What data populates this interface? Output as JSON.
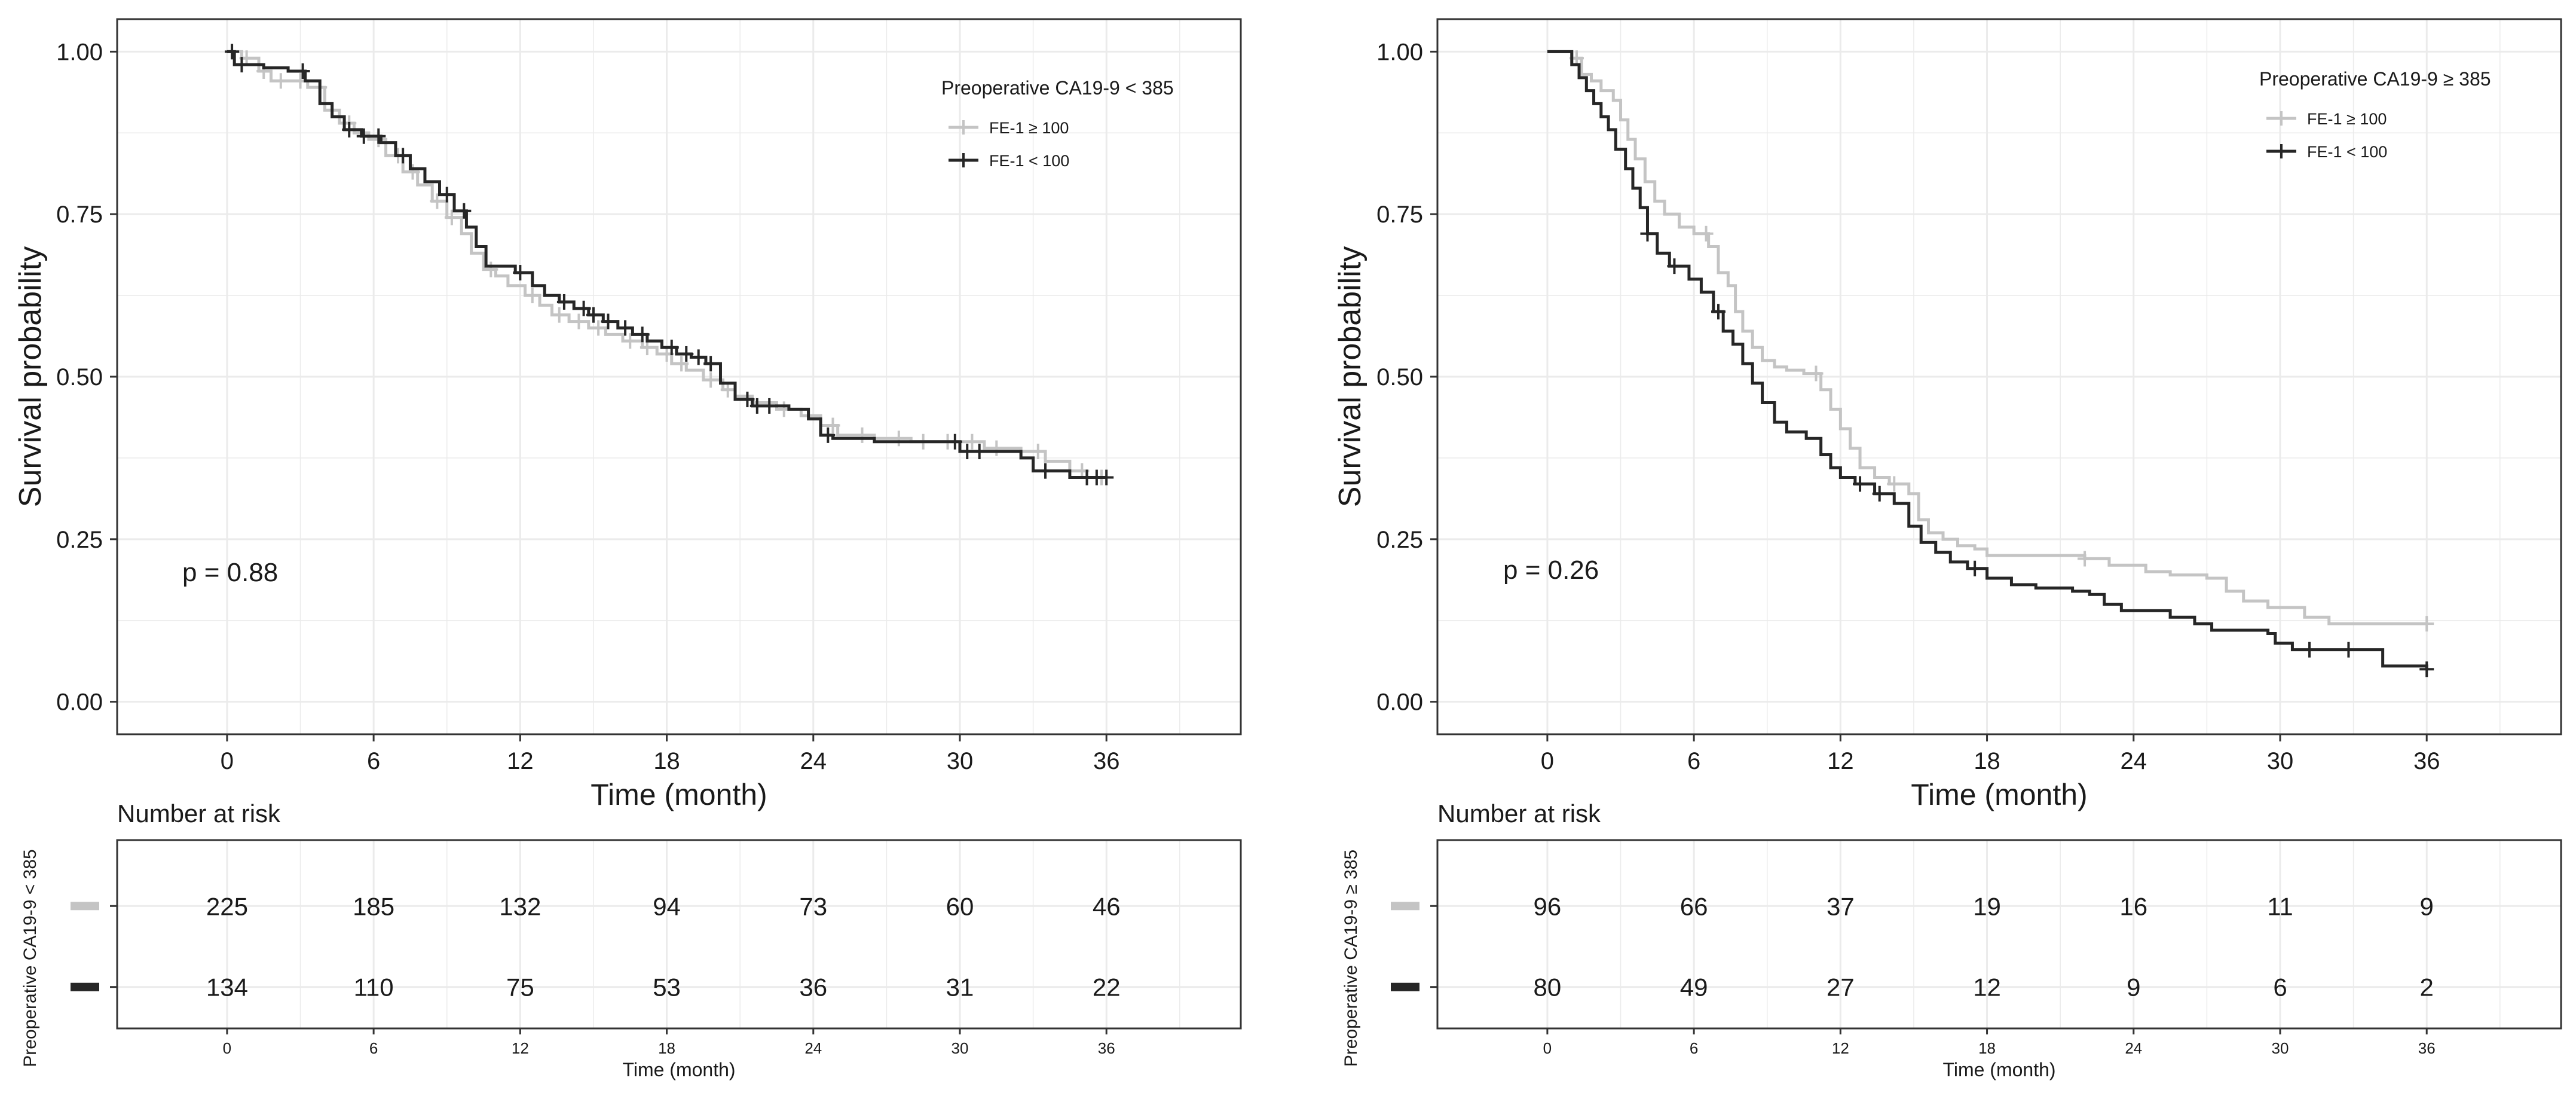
{
  "figure": {
    "colors": {
      "grey": "#c4c4c4",
      "black": "#262626",
      "grid": "#ebebeb",
      "frame": "#333333",
      "text": "#1a1a1a"
    }
  },
  "chart_data": [
    {
      "type": "line",
      "subtype": "kaplan-meier",
      "title": "",
      "xlabel": "Time (month)",
      "ylabel": "Survival probability",
      "xlim": [
        -4.5,
        41.5
      ],
      "ylim": [
        -0.05,
        1.05
      ],
      "xticks": [
        0,
        6,
        12,
        18,
        24,
        30,
        36
      ],
      "yticks": [
        0.0,
        0.25,
        0.5,
        0.75,
        1.0
      ],
      "ytick_labels": [
        "0.00",
        "0.25",
        "0.50",
        "0.75",
        "1.00"
      ],
      "legend_position": "top-right",
      "legend_title": "Preoperative CA19-9 < 385",
      "pvalue_text": "p = 0.88",
      "series": [
        {
          "name": "FE-1 ≥ 100",
          "color_key": "grey",
          "steps": [
            [
              0,
              1.0
            ],
            [
              0.6,
              0.99
            ],
            [
              1.3,
              0.97
            ],
            [
              1.8,
              0.955
            ],
            [
              2.5,
              0.955
            ],
            [
              3.3,
              0.945
            ],
            [
              4,
              0.91
            ],
            [
              4.6,
              0.89
            ],
            [
              5.2,
              0.875
            ],
            [
              5.8,
              0.865
            ],
            [
              6.5,
              0.84
            ],
            [
              7.2,
              0.815
            ],
            [
              7.8,
              0.795
            ],
            [
              8.4,
              0.77
            ],
            [
              9,
              0.745
            ],
            [
              9.6,
              0.72
            ],
            [
              10,
              0.69
            ],
            [
              10.5,
              0.665
            ],
            [
              11,
              0.655
            ],
            [
              11.5,
              0.64
            ],
            [
              12.2,
              0.625
            ],
            [
              12.8,
              0.61
            ],
            [
              13.3,
              0.595
            ],
            [
              14,
              0.585
            ],
            [
              14.8,
              0.575
            ],
            [
              15.5,
              0.565
            ],
            [
              16.2,
              0.555
            ],
            [
              17,
              0.545
            ],
            [
              17.6,
              0.535
            ],
            [
              18.2,
              0.52
            ],
            [
              18.8,
              0.51
            ],
            [
              19.5,
              0.495
            ],
            [
              20.3,
              0.48
            ],
            [
              20.8,
              0.47
            ],
            [
              21.5,
              0.46
            ],
            [
              22.5,
              0.45
            ],
            [
              23.5,
              0.44
            ],
            [
              24.3,
              0.425
            ],
            [
              25,
              0.41
            ],
            [
              26.5,
              0.405
            ],
            [
              28,
              0.4
            ],
            [
              31,
              0.39
            ],
            [
              32.5,
              0.385
            ],
            [
              33.5,
              0.37
            ],
            [
              34.5,
              0.355
            ],
            [
              35.2,
              0.345
            ],
            [
              36,
              0.345
            ]
          ],
          "censor_times": [
            0.8,
            1.5,
            2.2,
            3.0,
            3.8,
            5.0,
            6.2,
            7.0,
            7.6,
            8.6,
            9.2,
            10.8,
            12.5,
            13.6,
            14.4,
            15.2,
            16.5,
            17.2,
            18.0,
            18.6,
            19.8,
            20.5,
            22.8,
            24.8,
            26.0,
            27.5,
            28.5,
            29.5,
            30.5,
            31.5,
            33.2,
            35.0,
            35.8
          ]
        },
        {
          "name": "FE-1 < 100",
          "color_key": "black",
          "steps": [
            [
              0,
              1.0
            ],
            [
              0.3,
              0.98
            ],
            [
              1.5,
              0.975
            ],
            [
              2.5,
              0.97
            ],
            [
              3.2,
              0.955
            ],
            [
              3.8,
              0.92
            ],
            [
              4.3,
              0.9
            ],
            [
              4.8,
              0.88
            ],
            [
              5.5,
              0.87
            ],
            [
              6.3,
              0.86
            ],
            [
              6.9,
              0.84
            ],
            [
              7.5,
              0.82
            ],
            [
              8.1,
              0.8
            ],
            [
              8.7,
              0.78
            ],
            [
              9.3,
              0.755
            ],
            [
              9.8,
              0.73
            ],
            [
              10.2,
              0.7
            ],
            [
              10.6,
              0.67
            ],
            [
              11.8,
              0.66
            ],
            [
              12.5,
              0.64
            ],
            [
              13,
              0.625
            ],
            [
              13.6,
              0.615
            ],
            [
              14.2,
              0.605
            ],
            [
              14.8,
              0.595
            ],
            [
              15.4,
              0.585
            ],
            [
              16,
              0.575
            ],
            [
              16.6,
              0.565
            ],
            [
              17.2,
              0.555
            ],
            [
              17.8,
              0.545
            ],
            [
              18.4,
              0.535
            ],
            [
              19,
              0.53
            ],
            [
              19.6,
              0.52
            ],
            [
              20.2,
              0.49
            ],
            [
              20.8,
              0.465
            ],
            [
              21.5,
              0.455
            ],
            [
              23,
              0.45
            ],
            [
              23.8,
              0.435
            ],
            [
              24.3,
              0.41
            ],
            [
              24.8,
              0.405
            ],
            [
              26.5,
              0.4
            ],
            [
              28,
              0.4
            ],
            [
              30,
              0.385
            ],
            [
              31.8,
              0.385
            ],
            [
              32.5,
              0.375
            ],
            [
              33,
              0.355
            ],
            [
              34,
              0.355
            ],
            [
              34.5,
              0.345
            ],
            [
              36,
              0.345
            ]
          ],
          "censor_times": [
            0.2,
            0.6,
            3.1,
            5.0,
            5.6,
            6.2,
            7.2,
            9.0,
            9.7,
            12.0,
            13.8,
            14.6,
            15.0,
            15.6,
            16.3,
            17.0,
            18.2,
            18.8,
            19.3,
            19.8,
            21.3,
            21.7,
            22.2,
            24.6,
            29.8,
            30.3,
            30.8,
            33.5,
            35.2,
            35.6,
            36.0
          ]
        }
      ],
      "risk_table": {
        "title": "Number at risk",
        "strata_label": "Preoperative CA19-9 < 385",
        "xlabel": "Time (month)",
        "rows": [
          {
            "color_key": "grey",
            "values": [
              "225",
              "185",
              "132",
              "94",
              "73",
              "60",
              "46"
            ]
          },
          {
            "color_key": "black",
            "values": [
              "134",
              "110",
              "75",
              "53",
              "36",
              "31",
              "22"
            ]
          }
        ]
      }
    },
    {
      "type": "line",
      "subtype": "kaplan-meier",
      "title": "",
      "xlabel": "Time (month)",
      "ylabel": "Survival probability",
      "xlim": [
        -4.5,
        41.5
      ],
      "ylim": [
        -0.05,
        1.05
      ],
      "xticks": [
        0,
        6,
        12,
        18,
        24,
        30,
        36
      ],
      "yticks": [
        0.0,
        0.25,
        0.5,
        0.75,
        1.0
      ],
      "ytick_labels": [
        "0.00",
        "0.25",
        "0.50",
        "0.75",
        "1.00"
      ],
      "legend_position": "top-right",
      "legend_title": "Preoperative CA19-9 ≥ 385",
      "pvalue_text": "p = 0.26",
      "series": [
        {
          "name": "FE-1 ≥ 100",
          "color_key": "grey",
          "steps": [
            [
              0,
              1.0
            ],
            [
              1,
              0.99
            ],
            [
              1.4,
              0.965
            ],
            [
              1.8,
              0.955
            ],
            [
              2.2,
              0.94
            ],
            [
              2.7,
              0.925
            ],
            [
              3,
              0.895
            ],
            [
              3.3,
              0.865
            ],
            [
              3.6,
              0.835
            ],
            [
              4,
              0.8
            ],
            [
              4.4,
              0.77
            ],
            [
              4.8,
              0.75
            ],
            [
              5.4,
              0.73
            ],
            [
              6,
              0.72
            ],
            [
              6.6,
              0.7
            ],
            [
              7,
              0.66
            ],
            [
              7.4,
              0.64
            ],
            [
              7.7,
              0.6
            ],
            [
              8,
              0.57
            ],
            [
              8.4,
              0.545
            ],
            [
              8.8,
              0.525
            ],
            [
              9.3,
              0.515
            ],
            [
              9.8,
              0.51
            ],
            [
              10.5,
              0.505
            ],
            [
              11.2,
              0.48
            ],
            [
              11.6,
              0.45
            ],
            [
              12,
              0.42
            ],
            [
              12.4,
              0.39
            ],
            [
              12.8,
              0.36
            ],
            [
              13.4,
              0.345
            ],
            [
              14,
              0.335
            ],
            [
              14.8,
              0.32
            ],
            [
              15.2,
              0.28
            ],
            [
              15.6,
              0.26
            ],
            [
              16.2,
              0.25
            ],
            [
              16.8,
              0.24
            ],
            [
              17.5,
              0.235
            ],
            [
              18,
              0.225
            ],
            [
              20,
              0.225
            ],
            [
              22,
              0.22
            ],
            [
              23,
              0.21
            ],
            [
              24.5,
              0.2
            ],
            [
              25.5,
              0.195
            ],
            [
              27,
              0.19
            ],
            [
              27.8,
              0.17
            ],
            [
              28.5,
              0.155
            ],
            [
              29.5,
              0.145
            ],
            [
              31,
              0.13
            ],
            [
              32,
              0.12
            ],
            [
              36,
              0.12
            ]
          ],
          "censor_times": [
            1.2,
            6.5,
            11.0,
            14.2,
            22.0,
            36.0
          ]
        },
        {
          "name": "FE-1 < 100",
          "color_key": "black",
          "steps": [
            [
              0,
              1.0
            ],
            [
              0.5,
              1.0
            ],
            [
              1,
              0.98
            ],
            [
              1.3,
              0.96
            ],
            [
              1.6,
              0.94
            ],
            [
              1.9,
              0.92
            ],
            [
              2.2,
              0.9
            ],
            [
              2.5,
              0.88
            ],
            [
              2.8,
              0.85
            ],
            [
              3.2,
              0.82
            ],
            [
              3.5,
              0.79
            ],
            [
              3.8,
              0.76
            ],
            [
              4.1,
              0.72
            ],
            [
              4.5,
              0.69
            ],
            [
              5,
              0.67
            ],
            [
              5.8,
              0.65
            ],
            [
              6.3,
              0.63
            ],
            [
              6.8,
              0.6
            ],
            [
              7.2,
              0.57
            ],
            [
              7.6,
              0.55
            ],
            [
              8,
              0.52
            ],
            [
              8.4,
              0.49
            ],
            [
              8.8,
              0.46
            ],
            [
              9.3,
              0.43
            ],
            [
              9.8,
              0.415
            ],
            [
              10.6,
              0.405
            ],
            [
              11.2,
              0.38
            ],
            [
              11.6,
              0.36
            ],
            [
              12,
              0.345
            ],
            [
              12.6,
              0.335
            ],
            [
              13.4,
              0.32
            ],
            [
              14.2,
              0.305
            ],
            [
              14.8,
              0.27
            ],
            [
              15.3,
              0.245
            ],
            [
              15.9,
              0.23
            ],
            [
              16.5,
              0.215
            ],
            [
              17.2,
              0.205
            ],
            [
              18,
              0.19
            ],
            [
              19,
              0.18
            ],
            [
              20,
              0.175
            ],
            [
              21.5,
              0.17
            ],
            [
              22.2,
              0.165
            ],
            [
              22.8,
              0.15
            ],
            [
              23.5,
              0.14
            ],
            [
              25.5,
              0.13
            ],
            [
              26.5,
              0.12
            ],
            [
              27.2,
              0.11
            ],
            [
              29.5,
              0.105
            ],
            [
              29.8,
              0.09
            ],
            [
              30.5,
              0.08
            ],
            [
              33.8,
              0.08
            ],
            [
              34.2,
              0.055
            ],
            [
              36,
              0.05
            ]
          ],
          "censor_times": [
            4.1,
            5.2,
            7.0,
            12.8,
            13.6,
            17.5,
            31.2,
            32.8,
            36.0
          ]
        }
      ],
      "risk_table": {
        "title": "Number at risk",
        "strata_label": "Preoperative CA19-9 ≥ 385",
        "xlabel": "Time (month)",
        "rows": [
          {
            "color_key": "grey",
            "values": [
              "96",
              "66",
              "37",
              "19",
              "16",
              "11",
              "9"
            ]
          },
          {
            "color_key": "black",
            "values": [
              "80",
              "49",
              "27",
              "12",
              "9",
              "6",
              "2"
            ]
          }
        ]
      }
    }
  ]
}
